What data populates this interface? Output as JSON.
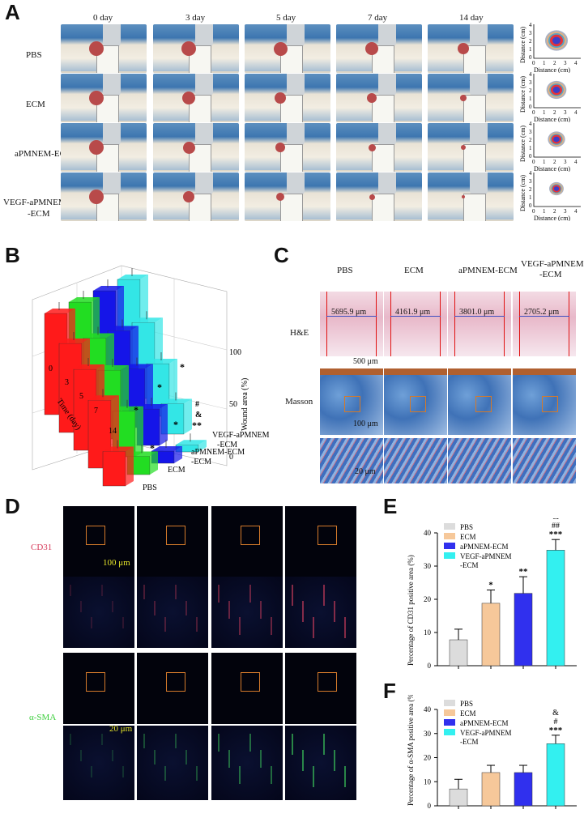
{
  "panels": {
    "A": "A",
    "B": "B",
    "C": "C",
    "D": "D",
    "E": "E",
    "F": "F"
  },
  "panelA": {
    "days": [
      "0 day",
      "3 day",
      "5 day",
      "7 day",
      "14 day"
    ],
    "groups": [
      "PBS",
      "ECM",
      "aPMNEM-ECM",
      "VEGF-aPMNEM\n-ECM"
    ],
    "group_line1": [
      "PBS",
      "ECM",
      "aPMNEM-ECM",
      "VEGF-aPMNEM"
    ],
    "group_line2": [
      "",
      "",
      "",
      "-ECM"
    ],
    "trace_xlabel": "Distance (cm)",
    "trace_ylabel": "Distance (cm)",
    "trace_ticks": [
      "0",
      "1",
      "2",
      "3",
      "4"
    ]
  },
  "panelC": {
    "cols": [
      "PBS",
      "ECM",
      "aPMNEM-ECM",
      "VEGF-aPMNEM"
    ],
    "col4_line2": "-ECM",
    "rows": [
      "H&E",
      "Masson"
    ],
    "widths": [
      "5695.9 μm",
      "4161.9 μm",
      "3801.0 μm",
      "2705.2 μm"
    ],
    "scale1": "500 μm",
    "scale2": "100 μm",
    "scale3": "20 μm"
  },
  "panelD": {
    "rows": [
      "CD31",
      "α-SMA"
    ],
    "scale1": "100 μm",
    "scale2": "20 μm"
  },
  "chart_data": [
    {
      "type": "bar",
      "title": "",
      "ylabel": "Wound area (%)",
      "xlabel": "Time (day)",
      "zlabel": "",
      "categories": [
        "0",
        "3",
        "5",
        "7",
        "14"
      ],
      "series": [
        {
          "name": "PBS",
          "color": "#ff1a1a",
          "values": [
            100,
            88,
            80,
            67,
            34
          ]
        },
        {
          "name": "ECM",
          "color": "#22dd22",
          "values": [
            100,
            82,
            68,
            45,
            18
          ]
        },
        {
          "name": "aPMNEM-ECM",
          "color": "#1515e8",
          "values": [
            100,
            78,
            58,
            36,
            12
          ]
        },
        {
          "name": "VEGF-aPMNEM\n-ECM",
          "color": "#33e6e6",
          "values": [
            100,
            75,
            52,
            30,
            7
          ]
        }
      ],
      "zticks": [
        "0",
        "50",
        "100"
      ],
      "annotations": [
        "*",
        "*",
        "*",
        "*",
        "*",
        "#",
        "&",
        "**"
      ]
    },
    {
      "type": "bar",
      "ylabel": "Percentage of CD31 positive area (%)",
      "categories": [
        "PBS",
        "ECM",
        "aPMNEM-ECM",
        "VEGF-aPMNEM\n-ECM"
      ],
      "values": [
        7.8,
        18.8,
        21.8,
        34.8
      ],
      "errors": [
        3.2,
        4.0,
        5.0,
        3.2
      ],
      "colors": [
        "#dcdcdc",
        "#f6c89a",
        "#3030ee",
        "#33f0f0"
      ],
      "ylim": [
        0,
        40
      ],
      "yticks": [
        "0",
        "10",
        "20",
        "30",
        "40"
      ],
      "sig": [
        "",
        "*",
        "**",
        "***"
      ],
      "sig2": [
        "",
        "",
        "",
        "##"
      ],
      "sig3": [
        "",
        "",
        "",
        "&"
      ]
    },
    {
      "type": "bar",
      "ylabel": "Percentage of α-SMA positive area (%)",
      "categories": [
        "PBS",
        "ECM",
        "aPMNEM-ECM",
        "VEGF-aPMNEM\n-ECM"
      ],
      "values": [
        7.0,
        13.8,
        13.8,
        25.8
      ],
      "errors": [
        4.0,
        3.0,
        3.0,
        3.5
      ],
      "colors": [
        "#dcdcdc",
        "#f6c89a",
        "#3030ee",
        "#33f0f0"
      ],
      "ylim": [
        0,
        40
      ],
      "yticks": [
        "0",
        "10",
        "20",
        "30",
        "40"
      ],
      "sig": [
        "",
        "",
        "",
        "***"
      ],
      "sig2": [
        "",
        "",
        "",
        "#"
      ],
      "sig3": [
        "",
        "",
        "",
        "&"
      ]
    }
  ],
  "legend": [
    "PBS",
    "ECM",
    "aPMNEM-ECM",
    "VEGF-aPMNEM",
    "-ECM"
  ]
}
